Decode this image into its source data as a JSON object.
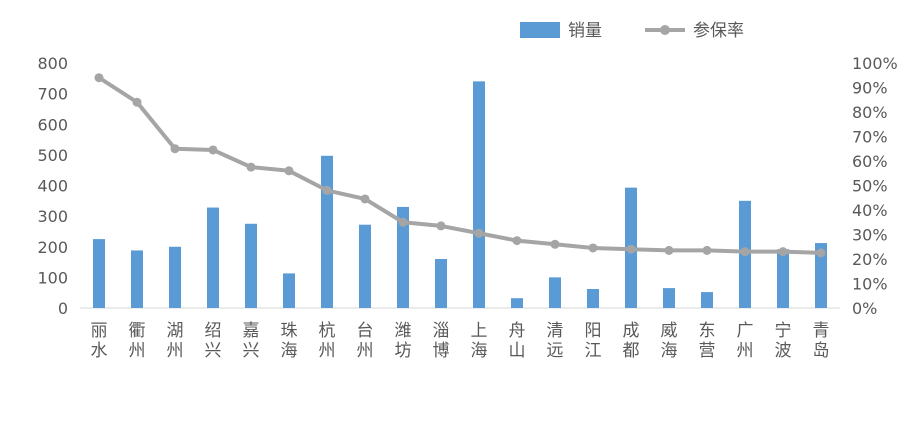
{
  "chart_data": {
    "type": "bar",
    "categories": [
      "丽水",
      "衢州",
      "湖州",
      "绍兴",
      "嘉兴",
      "珠海",
      "杭州",
      "台州",
      "潍坊",
      "淄博",
      "上海",
      "舟山",
      "清远",
      "阳江",
      "成都",
      "威海",
      "东营",
      "广州",
      "宁波",
      "青岛"
    ],
    "series": [
      {
        "name": "销量",
        "type": "bar",
        "axis": "left",
        "color": "#5B9BD5",
        "values": [
          225,
          188,
          200,
          328,
          275,
          113,
          497,
          272,
          330,
          160,
          740,
          32,
          100,
          62,
          393,
          65,
          52,
          350,
          192,
          212
        ]
      },
      {
        "name": "参保率",
        "type": "line",
        "axis": "right",
        "color": "#A5A5A5",
        "values": [
          0.94,
          0.84,
          0.65,
          0.645,
          0.575,
          0.56,
          0.48,
          0.445,
          0.35,
          0.335,
          0.305,
          0.275,
          0.26,
          0.245,
          0.24,
          0.235,
          0.235,
          0.23,
          0.23,
          0.225
        ]
      }
    ],
    "y_left": {
      "min": 0,
      "max": 800,
      "step": 100,
      "ticks": [
        "0",
        "100",
        "200",
        "300",
        "400",
        "500",
        "600",
        "700",
        "800"
      ]
    },
    "y_right": {
      "min": 0,
      "max": 1,
      "step": 0.1,
      "ticks": [
        "0%",
        "10%",
        "20%",
        "30%",
        "40%",
        "50%",
        "60%",
        "70%",
        "80%",
        "90%",
        "100%"
      ]
    },
    "grid": false,
    "legend_position": "top",
    "title": "",
    "xlabel": "",
    "ylabel": ""
  }
}
